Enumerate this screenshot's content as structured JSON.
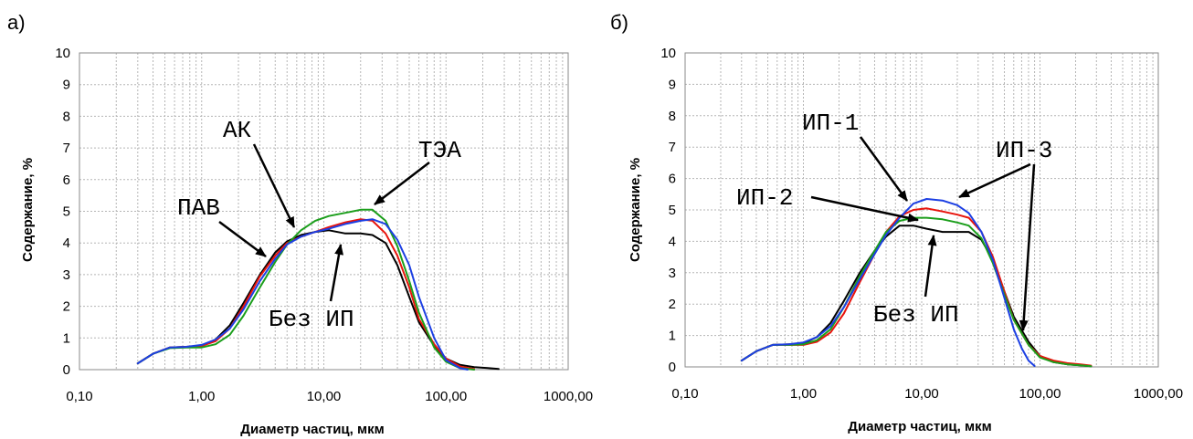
{
  "chart_data": [
    {
      "type": "line",
      "panel_label": "а)",
      "xlabel": "Диаметр частиц, мкм",
      "ylabel": "Содержание, %",
      "xscale": "log",
      "xlim": [
        0.1,
        1000
      ],
      "ylim": [
        0,
        10
      ],
      "xtick_labels": [
        "0,10",
        "1,00",
        "10,00",
        "100,00",
        "1000,00"
      ],
      "ytick_labels": [
        "0",
        "1",
        "2",
        "3",
        "4",
        "5",
        "6",
        "7",
        "8",
        "9",
        "10"
      ],
      "grid": true,
      "series": [
        {
          "color": "#000000",
          "x": [
            0.3,
            0.4,
            0.55,
            0.75,
            1.0,
            1.3,
            1.7,
            2.2,
            3.0,
            4.0,
            5.0,
            6.5,
            8.5,
            11,
            15,
            20,
            25,
            32,
            40,
            50,
            60,
            80,
            100,
            130,
            170,
            220,
            270
          ],
          "y": [
            0.2,
            0.5,
            0.7,
            0.72,
            0.75,
            0.95,
            1.4,
            2.1,
            3.0,
            3.7,
            4.05,
            4.25,
            4.35,
            4.4,
            4.3,
            4.3,
            4.25,
            4.0,
            3.3,
            2.3,
            1.5,
            0.75,
            0.35,
            0.15,
            0.08,
            0.05,
            0.02
          ]
        },
        {
          "color": "#e8140c",
          "x": [
            0.3,
            0.4,
            0.55,
            0.75,
            1.0,
            1.3,
            1.7,
            2.2,
            3.0,
            4.0,
            5.0,
            6.5,
            8.5,
            11,
            15,
            20,
            25,
            32,
            40,
            50,
            60,
            80,
            100,
            130,
            170
          ],
          "y": [
            0.2,
            0.5,
            0.7,
            0.72,
            0.75,
            0.9,
            1.3,
            2.0,
            2.95,
            3.6,
            4.0,
            4.2,
            4.35,
            4.5,
            4.65,
            4.75,
            4.7,
            4.3,
            3.6,
            2.6,
            1.6,
            0.8,
            0.35,
            0.1,
            0.02
          ]
        },
        {
          "color": "#1b9e1b",
          "x": [
            0.3,
            0.4,
            0.55,
            0.75,
            1.0,
            1.3,
            1.7,
            2.2,
            3.0,
            4.0,
            5.0,
            6.5,
            8.5,
            11,
            15,
            20,
            25,
            32,
            40,
            50,
            60,
            80,
            100,
            130,
            170
          ],
          "y": [
            0.2,
            0.5,
            0.68,
            0.7,
            0.7,
            0.8,
            1.1,
            1.7,
            2.6,
            3.4,
            3.95,
            4.4,
            4.7,
            4.85,
            4.95,
            5.05,
            5.05,
            4.7,
            3.9,
            2.8,
            1.8,
            0.7,
            0.25,
            0.05,
            0.0
          ]
        },
        {
          "color": "#1c3fe3",
          "x": [
            0.3,
            0.4,
            0.55,
            0.75,
            1.0,
            1.3,
            1.7,
            2.2,
            3.0,
            4.0,
            5.0,
            6.5,
            8.5,
            11,
            15,
            20,
            25,
            32,
            40,
            50,
            60,
            80,
            100,
            130,
            150
          ],
          "y": [
            0.2,
            0.5,
            0.7,
            0.72,
            0.78,
            0.95,
            1.3,
            1.9,
            2.8,
            3.5,
            3.95,
            4.2,
            4.35,
            4.45,
            4.6,
            4.7,
            4.75,
            4.6,
            4.1,
            3.3,
            2.3,
            1.0,
            0.3,
            0.05,
            0.0
          ]
        }
      ],
      "annotations": [
        {
          "text": "АК",
          "x": 6.5,
          "y": 4.3
        },
        {
          "text": "ТЭА",
          "x": 30,
          "y": 5.1
        },
        {
          "text": "ПАВ",
          "x": 4.2,
          "y": 4.0
        },
        {
          "text": "Без ИП",
          "x": 17,
          "y": 4.3
        }
      ]
    },
    {
      "type": "line",
      "panel_label": "б)",
      "xlabel": "Диаметр частиц, мкм",
      "ylabel": "Содержание, %",
      "xscale": "log",
      "xlim": [
        0.1,
        1000
      ],
      "ylim": [
        0,
        10
      ],
      "xtick_labels": [
        "0,10",
        "1,00",
        "10,00",
        "100,00",
        "1000,00"
      ],
      "ytick_labels": [
        "0",
        "1",
        "2",
        "3",
        "4",
        "5",
        "6",
        "7",
        "8",
        "9",
        "10"
      ],
      "grid": true,
      "series": [
        {
          "color": "#000000",
          "x": [
            0.3,
            0.4,
            0.55,
            0.75,
            1.0,
            1.3,
            1.7,
            2.2,
            3.0,
            4.0,
            5.0,
            6.5,
            8.5,
            11,
            15,
            20,
            25,
            32,
            40,
            50,
            60,
            80,
            100,
            130,
            170,
            220,
            270
          ],
          "y": [
            0.2,
            0.5,
            0.7,
            0.72,
            0.75,
            0.95,
            1.4,
            2.1,
            3.0,
            3.7,
            4.15,
            4.5,
            4.5,
            4.4,
            4.3,
            4.3,
            4.3,
            4.05,
            3.4,
            2.4,
            1.6,
            0.8,
            0.35,
            0.15,
            0.08,
            0.05,
            0.02
          ]
        },
        {
          "color": "#e8140c",
          "x": [
            0.3,
            0.4,
            0.55,
            0.75,
            1.0,
            1.3,
            1.7,
            2.2,
            3.0,
            4.0,
            5.0,
            6.5,
            8.5,
            11,
            15,
            20,
            25,
            32,
            40,
            50,
            60,
            80,
            100,
            130,
            170,
            220,
            270
          ],
          "y": [
            0.2,
            0.5,
            0.7,
            0.7,
            0.7,
            0.8,
            1.1,
            1.7,
            2.7,
            3.6,
            4.3,
            4.8,
            5.0,
            5.05,
            4.95,
            4.85,
            4.75,
            4.3,
            3.5,
            2.4,
            1.5,
            0.7,
            0.35,
            0.2,
            0.12,
            0.08,
            0.04
          ]
        },
        {
          "color": "#1b9e1b",
          "x": [
            0.3,
            0.4,
            0.55,
            0.75,
            1.0,
            1.3,
            1.7,
            2.2,
            3.0,
            4.0,
            5.0,
            6.5,
            8.5,
            11,
            15,
            20,
            25,
            32,
            40,
            50,
            60,
            80,
            100,
            130,
            170,
            220,
            270
          ],
          "y": [
            0.2,
            0.5,
            0.7,
            0.7,
            0.72,
            0.85,
            1.2,
            1.9,
            2.9,
            3.7,
            4.3,
            4.65,
            4.75,
            4.75,
            4.7,
            4.6,
            4.5,
            4.1,
            3.3,
            2.3,
            1.5,
            0.7,
            0.3,
            0.15,
            0.08,
            0.05,
            0.02
          ]
        },
        {
          "color": "#1c3fe3",
          "x": [
            0.3,
            0.4,
            0.55,
            0.75,
            1.0,
            1.3,
            1.7,
            2.2,
            3.0,
            4.0,
            5.0,
            6.5,
            8.5,
            11,
            15,
            20,
            25,
            32,
            40,
            50,
            60,
            70,
            80,
            90
          ],
          "y": [
            0.2,
            0.5,
            0.7,
            0.72,
            0.78,
            0.95,
            1.3,
            1.9,
            2.8,
            3.6,
            4.2,
            4.75,
            5.2,
            5.35,
            5.3,
            5.15,
            4.9,
            4.3,
            3.4,
            2.2,
            1.2,
            0.6,
            0.2,
            0.03
          ]
        }
      ],
      "annotations": [
        {
          "text": "ИП-1",
          "x": 9,
          "y": 5.2
        },
        {
          "text": "ИП-2",
          "x": 9,
          "y": 4.6
        },
        {
          "text": "ИП-3",
          "x": 16,
          "y": 5.4
        },
        {
          "text": "Без ИП",
          "x": 18,
          "y": 4.3
        }
      ]
    }
  ]
}
